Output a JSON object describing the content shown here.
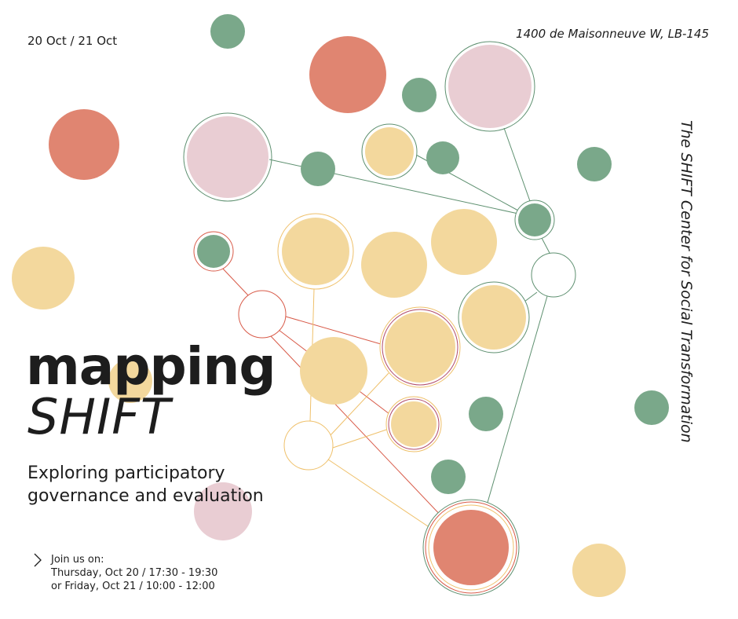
{
  "header": {
    "dates": "20 Oct  /  21 Oct",
    "address": "1400 de Maisonneuve W, LB-145",
    "organizer": "The SHIFT Center for Social Transformation"
  },
  "title": {
    "line1": "mapping",
    "line2": "SHIFT"
  },
  "subtitle": {
    "line1": "Exploring participatory",
    "line2": "governance and evaluation"
  },
  "schedule": {
    "intro": "Join us on:",
    "session1": "Thursday, Oct 20 / 17:30 - 19:30",
    "session2": "or Friday, Oct 21 / 10:00 - 12:00"
  }
}
